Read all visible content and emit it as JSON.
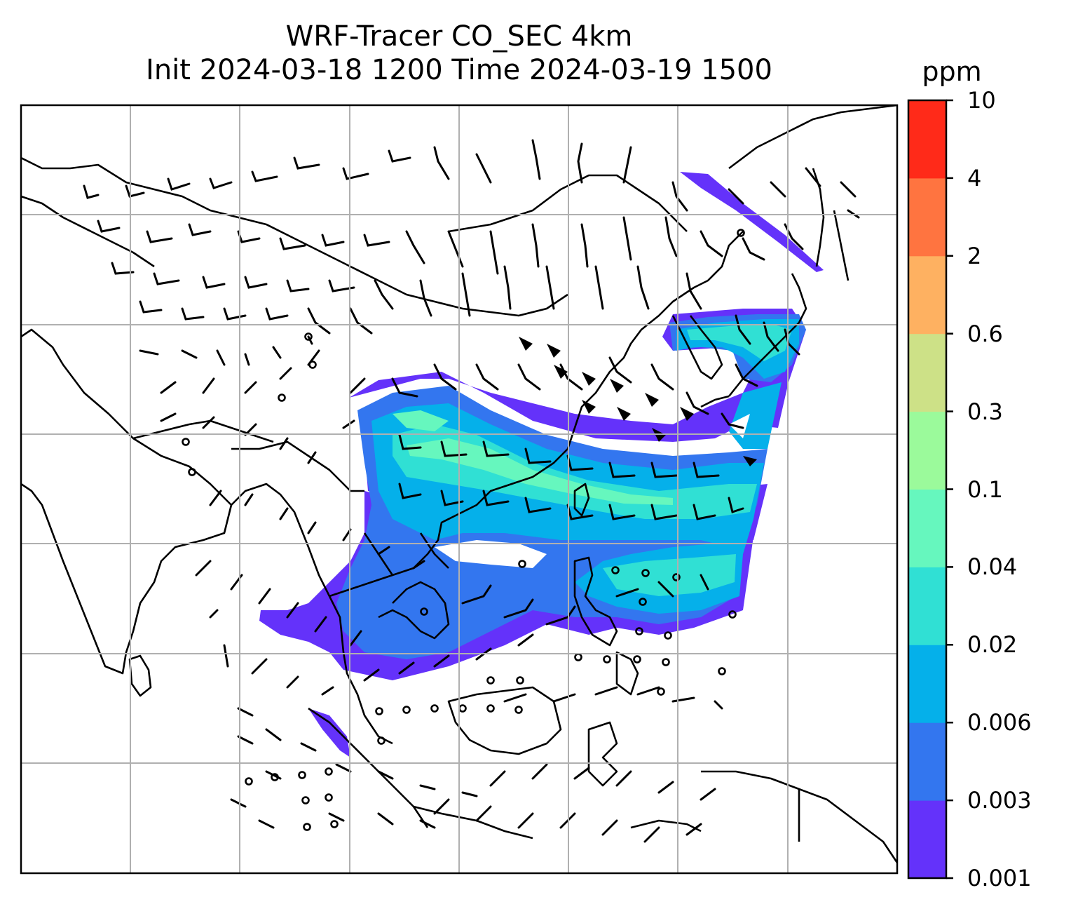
{
  "title": {
    "line1": "WRF-Tracer CO_SEC 4km",
    "line2": "Init 2024-03-18 1200 Time 2024-03-19 1500"
  },
  "colorbar": {
    "unit": "ppm",
    "levels": [
      "0.001",
      "0.003",
      "0.006",
      "0.02",
      "0.04",
      "0.1",
      "0.3",
      "0.6",
      "2",
      "4",
      "10"
    ],
    "colors": [
      "#6432fa",
      "#3376ef",
      "#05b0ea",
      "#30e0d4",
      "#66f7be",
      "#9bfa9b",
      "#cde187",
      "#feb161",
      "#ff7440",
      "#ff2a19"
    ]
  },
  "map": {
    "grid": "on",
    "wind_barbs": "on",
    "tracer_field": "CO_SEC"
  }
}
